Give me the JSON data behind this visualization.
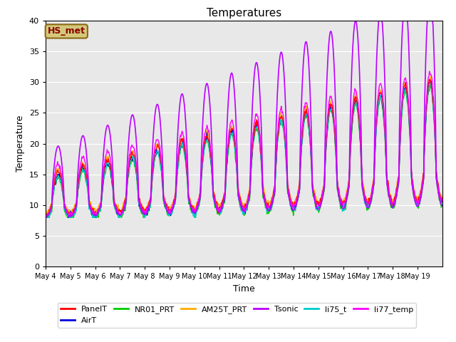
{
  "title": "Temperatures",
  "xlabel": "Time",
  "ylabel": "Temperature",
  "ylim": [
    0,
    40
  ],
  "yticks": [
    0,
    5,
    10,
    15,
    20,
    25,
    30,
    35,
    40
  ],
  "bg_color": "#e8e8e8",
  "annotation_text": "HS_met",
  "annotation_color": "#8b0000",
  "annotation_bg": "#d4c87a",
  "annotation_edge": "#8b6914",
  "series_names": [
    "PanelT",
    "AirT",
    "NR01_PRT",
    "AM25T_PRT",
    "Tsonic",
    "li75_t",
    "li77_temp"
  ],
  "series_colors": [
    "#ff0000",
    "#0000dd",
    "#00cc00",
    "#ffaa00",
    "#bb00ff",
    "#00cccc",
    "#ff00ff"
  ],
  "series_lw": [
    1.0,
    1.0,
    1.0,
    1.0,
    1.2,
    1.0,
    1.0
  ],
  "x_tick_labels": [
    "May 4",
    "May 5",
    "May 6",
    "May 7",
    "May 8",
    "May 9",
    "May 10",
    "May 11",
    "May 12",
    "May 13",
    "May 14",
    "May 15",
    "May 16",
    "May 17",
    "May 18",
    "May 19"
  ],
  "n_days": 16,
  "pts_per_day": 48
}
